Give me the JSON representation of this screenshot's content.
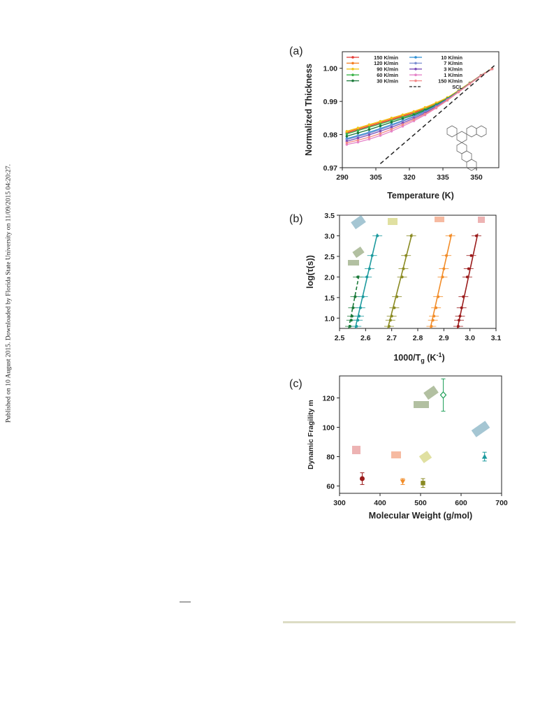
{
  "sidebar": {
    "text": "Published on 10 August 2015. Downloaded by Florida State University on 11/09/2015 04:20:27."
  },
  "colors": {
    "r150": "#e53935",
    "r120": "#f57c20",
    "r90": "#f2c418",
    "r60": "#3cb44b",
    "r30": "#1b7a3a",
    "r10": "#2e8fd4",
    "r7": "#7b8fd1",
    "r3": "#7b4fb8",
    "r1": "#e583c8",
    "r150b": "#f28a8a",
    "teal": "#1c9a9e",
    "olive": "#8a8a22",
    "orange": "#f28c28",
    "darkred": "#9b1c1c",
    "green": "#21a05a"
  },
  "chart_data": [
    {
      "panel": "(a)",
      "type": "line",
      "xlabel": "Temperature (K)",
      "ylabel": "Normalized Thickness",
      "xlim": [
        290,
        360
      ],
      "ylim": [
        0.97,
        1.005
      ],
      "xticks": [
        290,
        305,
        320,
        335,
        350
      ],
      "yticks": [
        0.97,
        0.98,
        0.99,
        1.0
      ],
      "xtick_labels": [
        "290",
        "305",
        "320",
        "335",
        "350"
      ],
      "ytick_labels": [
        "0.97",
        "0.98",
        "0.99",
        "1.00"
      ],
      "legend_position": "top",
      "series": [
        {
          "name": "150 K/min",
          "color": "#e53935",
          "x": [
            292,
            297,
            302,
            307,
            312,
            317,
            322,
            327,
            332,
            337,
            342,
            347,
            352,
            357
          ],
          "y": [
            0.9805,
            0.9815,
            0.9825,
            0.9835,
            0.9845,
            0.9855,
            0.9865,
            0.9878,
            0.9892,
            0.991,
            0.9932,
            0.9955,
            0.9978,
            0.9998
          ]
        },
        {
          "name": "120 K/min",
          "color": "#f57c20",
          "x": [
            292,
            297,
            302,
            307,
            312,
            317,
            322,
            327,
            332,
            337,
            342,
            347,
            352,
            357
          ],
          "y": [
            0.9808,
            0.9818,
            0.9828,
            0.9838,
            0.9848,
            0.9858,
            0.9868,
            0.988,
            0.9894,
            0.9911,
            0.9933,
            0.9956,
            0.9979,
            0.9999
          ]
        },
        {
          "name": "90 K/min",
          "color": "#f2c418",
          "x": [
            292,
            297,
            302,
            307,
            312,
            317,
            322,
            327,
            332,
            337,
            342,
            347,
            352,
            357
          ],
          "y": [
            0.981,
            0.982,
            0.983,
            0.984,
            0.985,
            0.986,
            0.987,
            0.9882,
            0.9896,
            0.9912,
            0.9933,
            0.9956,
            0.9979,
            0.9999
          ]
        },
        {
          "name": "60 K/min",
          "color": "#3cb44b",
          "x": [
            292,
            297,
            302,
            307,
            312,
            317,
            322,
            327,
            332,
            337,
            342,
            347,
            352,
            357
          ],
          "y": [
            0.9802,
            0.9812,
            0.9822,
            0.9832,
            0.9842,
            0.9852,
            0.9862,
            0.9876,
            0.9891,
            0.9909,
            0.9931,
            0.9955,
            0.9978,
            0.9998
          ]
        },
        {
          "name": "30 K/min",
          "color": "#1b7a3a",
          "x": [
            292,
            297,
            302,
            307,
            312,
            317,
            322,
            327,
            332,
            337,
            342,
            347,
            352,
            357
          ],
          "y": [
            0.9795,
            0.9805,
            0.9815,
            0.9826,
            0.9837,
            0.9848,
            0.9859,
            0.9873,
            0.9889,
            0.9908,
            0.9931,
            0.9954,
            0.9978,
            0.9998
          ]
        },
        {
          "name": "10 K/min",
          "color": "#2e8fd4",
          "x": [
            292,
            297,
            302,
            307,
            312,
            317,
            322,
            327,
            332,
            337,
            342,
            347,
            352,
            357
          ],
          "y": [
            0.9788,
            0.9797,
            0.9807,
            0.9818,
            0.983,
            0.9842,
            0.9855,
            0.987,
            0.9887,
            0.9907,
            0.993,
            0.9954,
            0.9978,
            0.9998
          ]
        },
        {
          "name": "7 K/min",
          "color": "#7b8fd1",
          "x": [
            292,
            297,
            302,
            307,
            312,
            317,
            322,
            327,
            332,
            337,
            342,
            347,
            352,
            357
          ],
          "y": [
            0.9785,
            0.9794,
            0.9804,
            0.9815,
            0.9827,
            0.984,
            0.9853,
            0.9868,
            0.9886,
            0.9906,
            0.993,
            0.9954,
            0.9978,
            0.9998
          ]
        },
        {
          "name": "3 K/min",
          "color": "#7b4fb8",
          "x": [
            292,
            297,
            302,
            307,
            312,
            317,
            322,
            327,
            332,
            337,
            342,
            347,
            352,
            357
          ],
          "y": [
            0.978,
            0.9789,
            0.9799,
            0.981,
            0.9822,
            0.9835,
            0.9849,
            0.9865,
            0.9884,
            0.9905,
            0.9929,
            0.9954,
            0.9978,
            0.9998
          ]
        },
        {
          "name": "1 K/min",
          "color": "#e583c8",
          "x": [
            292,
            297,
            302,
            307,
            312,
            317,
            322,
            327,
            332,
            337,
            342,
            347,
            352,
            357
          ],
          "y": [
            0.977,
            0.9777,
            0.9786,
            0.9797,
            0.981,
            0.9825,
            0.9841,
            0.9859,
            0.988,
            0.9903,
            0.9928,
            0.9953,
            0.9977,
            0.9998
          ]
        },
        {
          "name": "150 K/min",
          "color": "#f28a8a",
          "x": [
            292,
            297,
            302,
            307,
            312,
            317,
            322,
            327,
            332,
            337,
            342,
            347,
            352,
            357
          ],
          "y": [
            0.9775,
            0.9783,
            0.9792,
            0.9803,
            0.9816,
            0.983,
            0.9845,
            0.9862,
            0.9882,
            0.9904,
            0.9929,
            0.9953,
            0.9977,
            0.9998
          ]
        },
        {
          "name": "SCL",
          "color": "#222222",
          "dashed": true,
          "x": [
            307,
            358
          ],
          "y": [
            0.9712,
            1.0008
          ]
        }
      ]
    },
    {
      "panel": "(b)",
      "type": "scatter",
      "xlabel": "1000/T",
      "xlabel_sub": "g",
      "xlabel_unit": " (K",
      "xlabel_sup": "-1",
      "xlabel_close": ")",
      "ylabel": "log(τ(s))",
      "xlim": [
        2.5,
        3.1
      ],
      "ylim": [
        0.75,
        3.5
      ],
      "xticks": [
        2.5,
        2.6,
        2.7,
        2.8,
        2.9,
        3.0,
        3.1
      ],
      "yticks": [
        1.0,
        1.5,
        2.0,
        2.5,
        3.0,
        3.5
      ],
      "xtick_labels": [
        "2.5",
        "2.6",
        "2.7",
        "2.8",
        "2.9",
        "3.0",
        "3.1"
      ],
      "ytick_labels": [
        "1.0",
        "1.5",
        "2.0",
        "2.5",
        "3.0",
        "3.5"
      ],
      "series": [
        {
          "color": "#1b7a3a",
          "dashed": true,
          "points": [
            [
              2.54,
              0.8
            ],
            [
              2.545,
              0.95
            ],
            [
              2.548,
              1.05
            ],
            [
              2.552,
              1.25
            ],
            [
              2.56,
              1.52
            ],
            [
              2.57,
              2.0
            ]
          ],
          "fit": [
            [
              2.535,
              0.75
            ],
            [
              2.575,
              2.05
            ]
          ]
        },
        {
          "color": "#1c9a9e",
          "dashed": false,
          "points": [
            [
              2.565,
              0.8
            ],
            [
              2.57,
              0.95
            ],
            [
              2.575,
              1.05
            ],
            [
              2.58,
              1.25
            ],
            [
              2.59,
              1.52
            ],
            [
              2.605,
              2.0
            ],
            [
              2.615,
              2.2
            ],
            [
              2.625,
              2.52
            ],
            [
              2.645,
              3.0
            ]
          ],
          "fit": [
            [
              2.56,
              0.75
            ],
            [
              2.645,
              3.05
            ]
          ]
        },
        {
          "color": "#8a8a22",
          "dashed": false,
          "points": [
            [
              2.69,
              0.8
            ],
            [
              2.695,
              0.95
            ],
            [
              2.7,
              1.05
            ],
            [
              2.71,
              1.25
            ],
            [
              2.72,
              1.52
            ],
            [
              2.74,
              2.0
            ],
            [
              2.745,
              2.2
            ],
            [
              2.755,
              2.52
            ],
            [
              2.775,
              3.0
            ]
          ],
          "fit": [
            [
              2.685,
              0.75
            ],
            [
              2.778,
              3.05
            ]
          ]
        },
        {
          "color": "#f28c28",
          "dashed": false,
          "points": [
            [
              2.852,
              0.8
            ],
            [
              2.858,
              0.95
            ],
            [
              2.862,
              1.05
            ],
            [
              2.87,
              1.25
            ],
            [
              2.878,
              1.52
            ],
            [
              2.895,
              2.0
            ],
            [
              2.9,
              2.2
            ],
            [
              2.91,
              2.52
            ],
            [
              2.925,
              3.0
            ]
          ],
          "fit": [
            [
              2.848,
              0.75
            ],
            [
              2.93,
              3.05
            ]
          ]
        },
        {
          "color": "#9b1c1c",
          "dashed": false,
          "points": [
            [
              2.955,
              0.8
            ],
            [
              2.958,
              0.95
            ],
            [
              2.962,
              1.05
            ],
            [
              2.968,
              1.25
            ],
            [
              2.975,
              1.52
            ],
            [
              2.99,
              2.0
            ],
            [
              2.995,
              2.2
            ],
            [
              3.005,
              2.52
            ],
            [
              3.025,
              3.0
            ]
          ],
          "fit": [
            [
              2.952,
              0.75
            ],
            [
              3.03,
              3.05
            ]
          ]
        }
      ]
    },
    {
      "panel": "(c)",
      "type": "scatter",
      "xlabel": "Molecular Weight (g/mol)",
      "ylabel": "Dynamic Fragility m",
      "xlim": [
        300,
        700
      ],
      "ylim": [
        55,
        135
      ],
      "xticks": [
        300,
        400,
        500,
        600,
        700
      ],
      "yticks": [
        60,
        80,
        100,
        120
      ],
      "xtick_labels": [
        "300",
        "400",
        "500",
        "600",
        "700"
      ],
      "ytick_labels": [
        "60",
        "80",
        "100",
        "120"
      ],
      "points": [
        {
          "x": 356,
          "y": 65,
          "err": 4,
          "color": "#9b1c1c",
          "marker": "circle"
        },
        {
          "x": 456,
          "y": 63,
          "err": 2,
          "color": "#f28c28",
          "marker": "triangle-down"
        },
        {
          "x": 506,
          "y": 62,
          "err": 3,
          "color": "#8a8a22",
          "marker": "square"
        },
        {
          "x": 556,
          "y": 122,
          "err": 11,
          "color": "#21a05a",
          "marker": "diamond-open"
        },
        {
          "x": 658,
          "y": 80,
          "err": 3,
          "color": "#1c9a9e",
          "marker": "triangle-up"
        }
      ]
    }
  ]
}
